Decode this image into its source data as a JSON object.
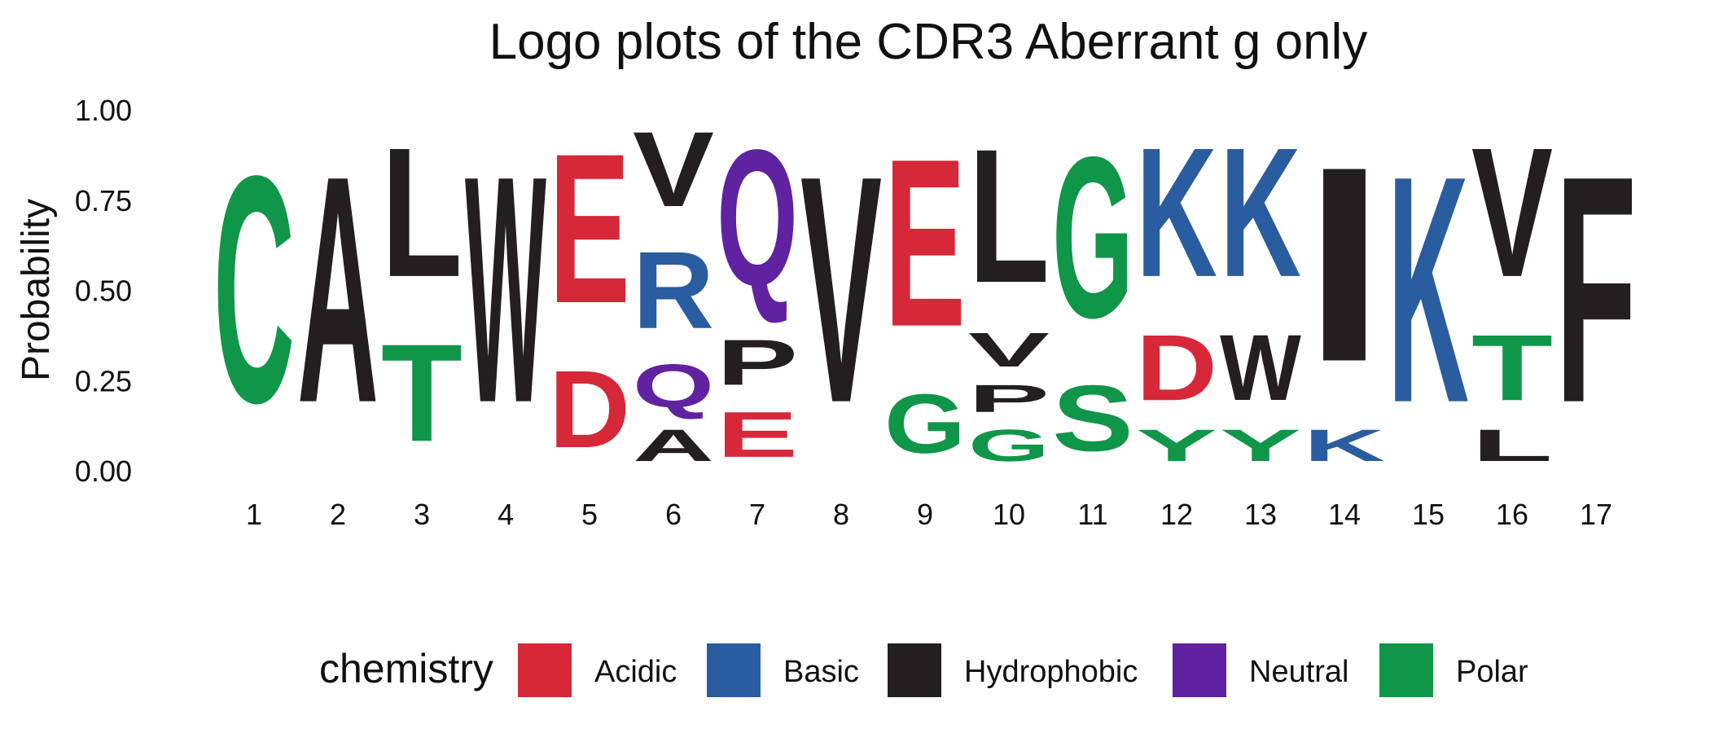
{
  "chart_data": {
    "type": "sequence-logo",
    "title": "Logo plots of the CDR3 Aberrant g only",
    "xlabel": "",
    "ylabel": "Probability",
    "ylim": [
      0,
      1
    ],
    "yticks": [
      "0.00",
      "0.25",
      "0.50",
      "0.75",
      "1.00"
    ],
    "grid": false,
    "legend_position": "bottom",
    "legend": {
      "title": "chemistry",
      "entries": [
        {
          "name": "Acidic",
          "color": "#d62839"
        },
        {
          "name": "Basic",
          "color": "#2a5d9f"
        },
        {
          "name": "Hydrophobic",
          "color": "#231f20"
        },
        {
          "name": "Neutral",
          "color": "#6022a0"
        },
        {
          "name": "Polar",
          "color": "#109648"
        }
      ]
    },
    "positions": [
      {
        "x": "1",
        "stack": [
          {
            "letter": "C",
            "prob": 1.0,
            "chemistry": "Polar"
          }
        ]
      },
      {
        "x": "2",
        "stack": [
          {
            "letter": "A",
            "prob": 1.0,
            "chemistry": "Hydrophobic"
          }
        ]
      },
      {
        "x": "3",
        "stack": [
          {
            "letter": "T",
            "prob": 0.43,
            "chemistry": "Polar"
          },
          {
            "letter": "L",
            "prob": 0.57,
            "chemistry": "Hydrophobic"
          }
        ]
      },
      {
        "x": "4",
        "stack": [
          {
            "letter": "W",
            "prob": 1.0,
            "chemistry": "Hydrophobic"
          }
        ]
      },
      {
        "x": "5",
        "stack": [
          {
            "letter": "D",
            "prob": 0.34,
            "chemistry": "Acidic"
          },
          {
            "letter": "E",
            "prob": 0.66,
            "chemistry": "Acidic"
          }
        ]
      },
      {
        "x": "6",
        "stack": [
          {
            "letter": "A",
            "prob": 0.14,
            "chemistry": "Hydrophobic"
          },
          {
            "letter": "Q",
            "prob": 0.19,
            "chemistry": "Neutral"
          },
          {
            "letter": "R",
            "prob": 0.34,
            "chemistry": "Basic"
          },
          {
            "letter": "V",
            "prob": 0.33,
            "chemistry": "Hydrophobic"
          }
        ]
      },
      {
        "x": "7",
        "stack": [
          {
            "letter": "E",
            "prob": 0.2,
            "chemistry": "Acidic"
          },
          {
            "letter": "P",
            "prob": 0.2,
            "chemistry": "Hydrophobic"
          },
          {
            "letter": "Q",
            "prob": 0.6,
            "chemistry": "Neutral"
          }
        ]
      },
      {
        "x": "8",
        "stack": [
          {
            "letter": "V",
            "prob": 1.0,
            "chemistry": "Hydrophobic"
          }
        ]
      },
      {
        "x": "9",
        "stack": [
          {
            "letter": "G",
            "prob": 0.26,
            "chemistry": "Polar"
          },
          {
            "letter": "E",
            "prob": 0.74,
            "chemistry": "Acidic"
          }
        ]
      },
      {
        "x": "10",
        "stack": [
          {
            "letter": "G",
            "prob": 0.14,
            "chemistry": "Polar"
          },
          {
            "letter": "P",
            "prob": 0.12,
            "chemistry": "Hydrophobic"
          },
          {
            "letter": "V",
            "prob": 0.15,
            "chemistry": "Hydrophobic"
          },
          {
            "letter": "L",
            "prob": 0.59,
            "chemistry": "Hydrophobic"
          }
        ]
      },
      {
        "x": "11",
        "stack": [
          {
            "letter": "S",
            "prob": 0.29,
            "chemistry": "Polar"
          },
          {
            "letter": "G",
            "prob": 0.71,
            "chemistry": "Polar"
          }
        ]
      },
      {
        "x": "12",
        "stack": [
          {
            "letter": "Y",
            "prob": 0.14,
            "chemistry": "Polar"
          },
          {
            "letter": "D",
            "prob": 0.29,
            "chemistry": "Acidic"
          },
          {
            "letter": "K",
            "prob": 0.57,
            "chemistry": "Basic"
          }
        ]
      },
      {
        "x": "13",
        "stack": [
          {
            "letter": "Y",
            "prob": 0.14,
            "chemistry": "Polar"
          },
          {
            "letter": "W",
            "prob": 0.29,
            "chemistry": "Hydrophobic"
          },
          {
            "letter": "K",
            "prob": 0.57,
            "chemistry": "Basic"
          }
        ]
      },
      {
        "x": "14",
        "stack": [
          {
            "letter": "K",
            "prob": 0.14,
            "chemistry": "Basic"
          },
          {
            "letter": "I",
            "prob": 0.86,
            "chemistry": "Hydrophobic"
          }
        ]
      },
      {
        "x": "15",
        "stack": [
          {
            "letter": "K",
            "prob": 1.0,
            "chemistry": "Basic"
          }
        ]
      },
      {
        "x": "16",
        "stack": [
          {
            "letter": "L",
            "prob": 0.14,
            "chemistry": "Hydrophobic"
          },
          {
            "letter": "T",
            "prob": 0.29,
            "chemistry": "Polar"
          },
          {
            "letter": "V",
            "prob": 0.57,
            "chemistry": "Hydrophobic"
          }
        ]
      },
      {
        "x": "17",
        "stack": [
          {
            "letter": "F",
            "prob": 1.0,
            "chemistry": "Hydrophobic"
          }
        ]
      }
    ]
  }
}
